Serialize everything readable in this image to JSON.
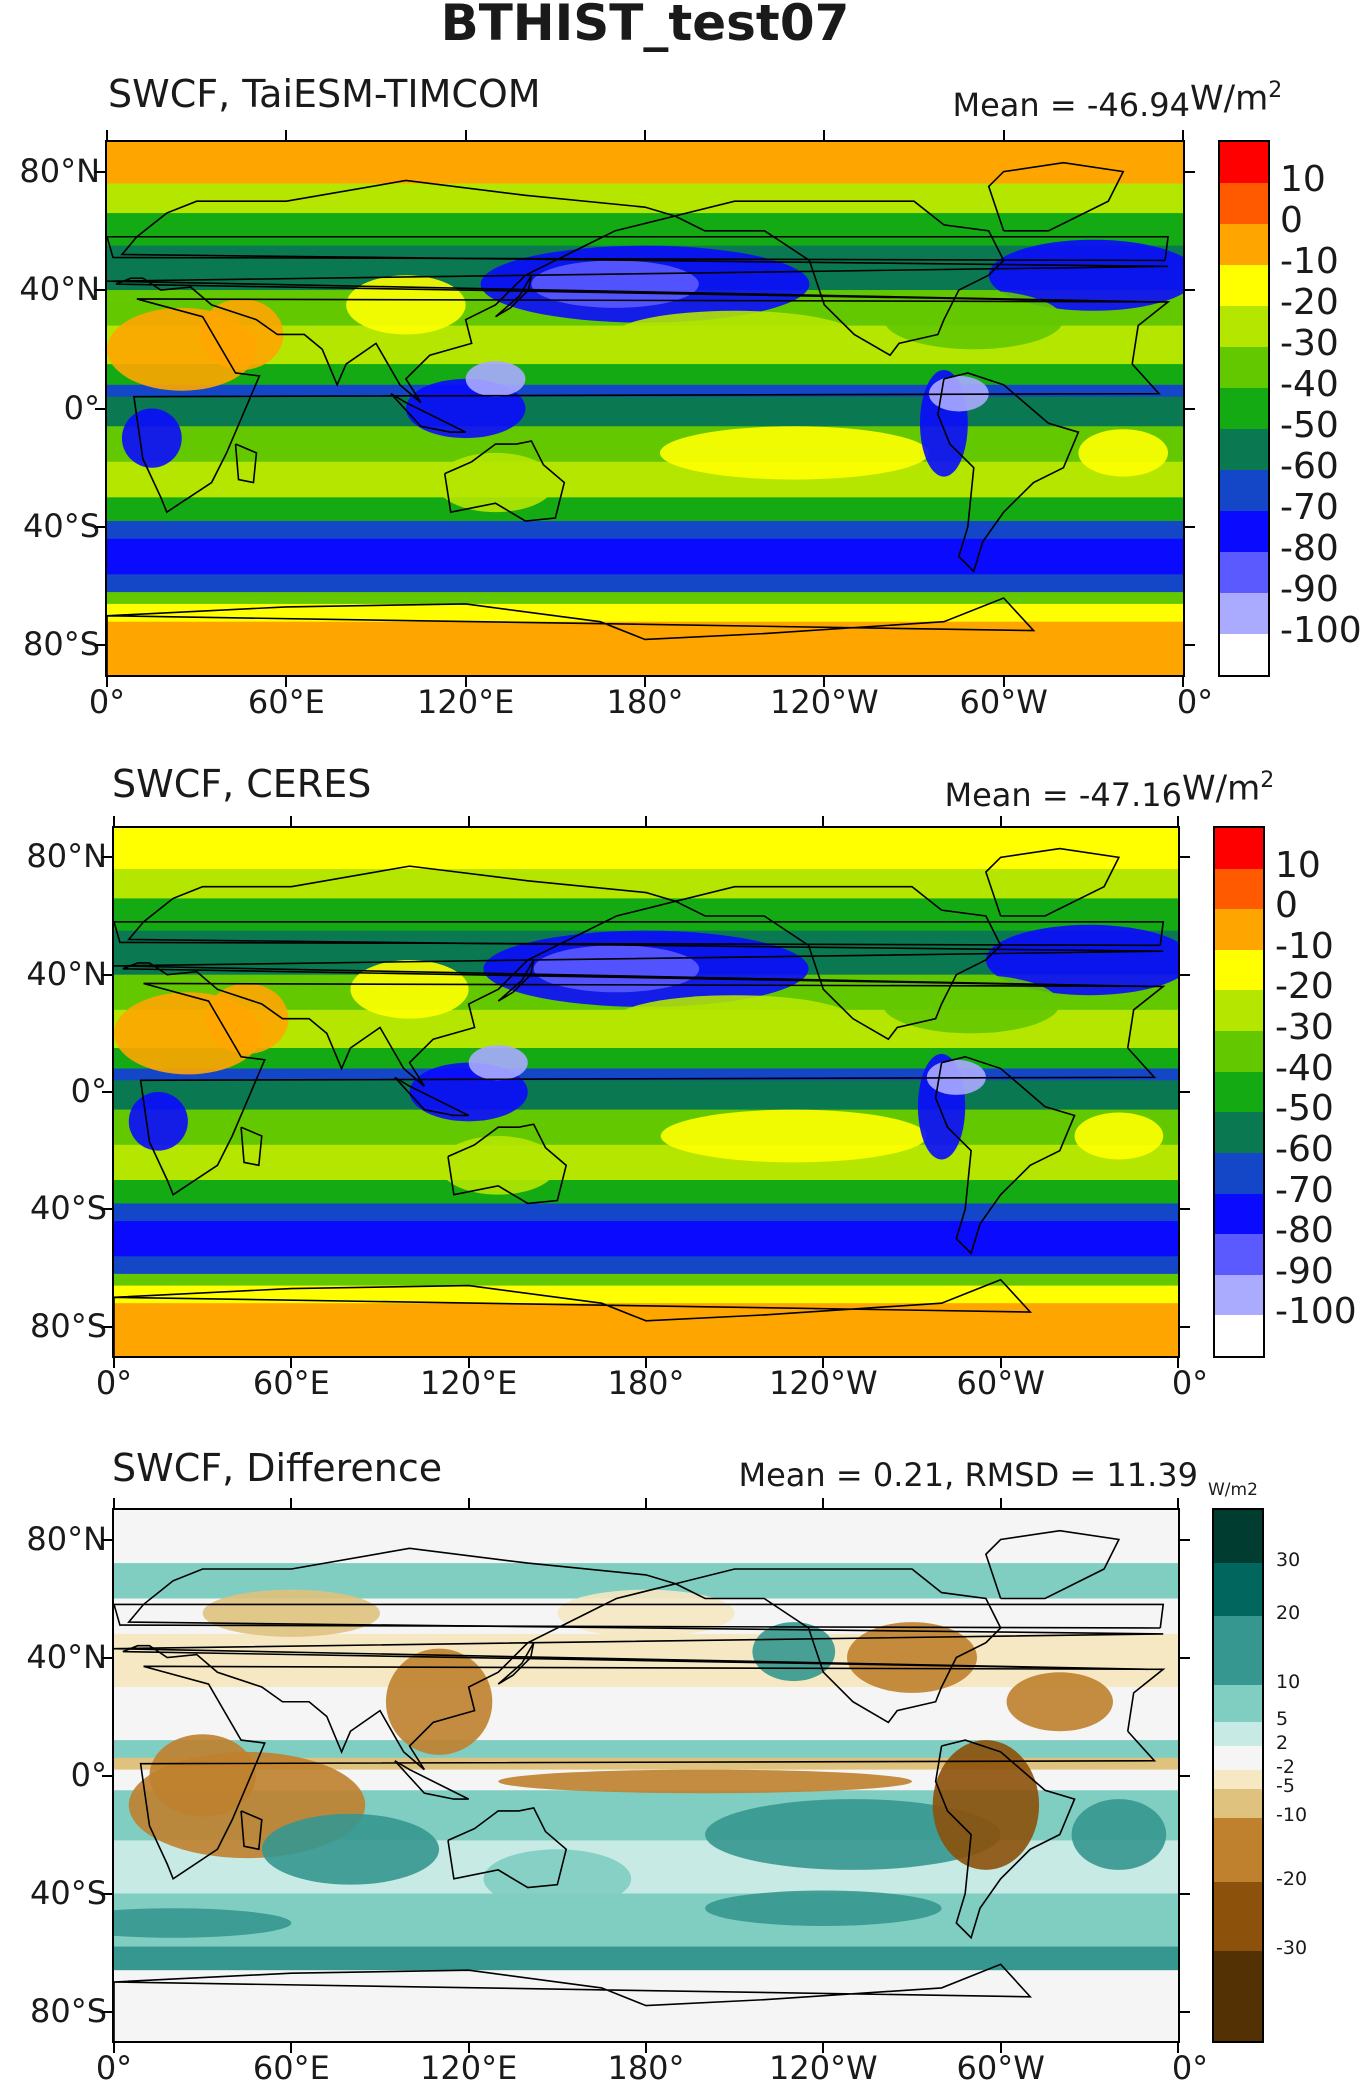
{
  "title": "BTHIST_test07",
  "panels": [
    {
      "title": "SWCF, TaiESM-TIMCOM",
      "mean_label": "Mean = -46.94",
      "units_base": "W/m",
      "units_sup": "2",
      "colorbar_labels": [
        "10",
        "0",
        "-10",
        "-20",
        "-30",
        "-40",
        "-50",
        "-60",
        "-70",
        "-80",
        "-90",
        "-100"
      ]
    },
    {
      "title": "SWCF, CERES",
      "mean_label": "Mean = -47.16",
      "units_base": "W/m",
      "units_sup": "2",
      "colorbar_labels": [
        "10",
        "0",
        "-10",
        "-20",
        "-30",
        "-40",
        "-50",
        "-60",
        "-70",
        "-80",
        "-90",
        "-100"
      ]
    },
    {
      "title": "SWCF, Difference",
      "mean_label": "Mean = 0.21, RMSD = 11.39",
      "units_small": "W/m2",
      "colorbar_labels": [
        "30",
        "20",
        "10",
        "5",
        "2",
        "-2",
        "-5",
        "-10",
        "-20",
        "-30"
      ]
    }
  ],
  "lat_labels": [
    "80°N",
    "40°N",
    "0°",
    "40°S",
    "80°S"
  ],
  "lon_labels": [
    "0°",
    "60°E",
    "120°E",
    "180°",
    "120°W",
    "60°W",
    "0°"
  ],
  "colors": {
    "abs_scale": [
      "#ff0000",
      "#ff5a00",
      "#ffa500",
      "#ffff00",
      "#b4e600",
      "#64c800",
      "#14aa14",
      "#0a7850",
      "#1446c8",
      "#0a0aff",
      "#5a5aff",
      "#aaaaff",
      "#ffffff"
    ],
    "diff_scale": [
      "#003c30",
      "#01665e",
      "#35978f",
      "#80cdc1",
      "#c7eae5",
      "#f5f5f5",
      "#f6e8c3",
      "#dfc27d",
      "#bf812d",
      "#8c510a",
      "#543005"
    ]
  }
}
